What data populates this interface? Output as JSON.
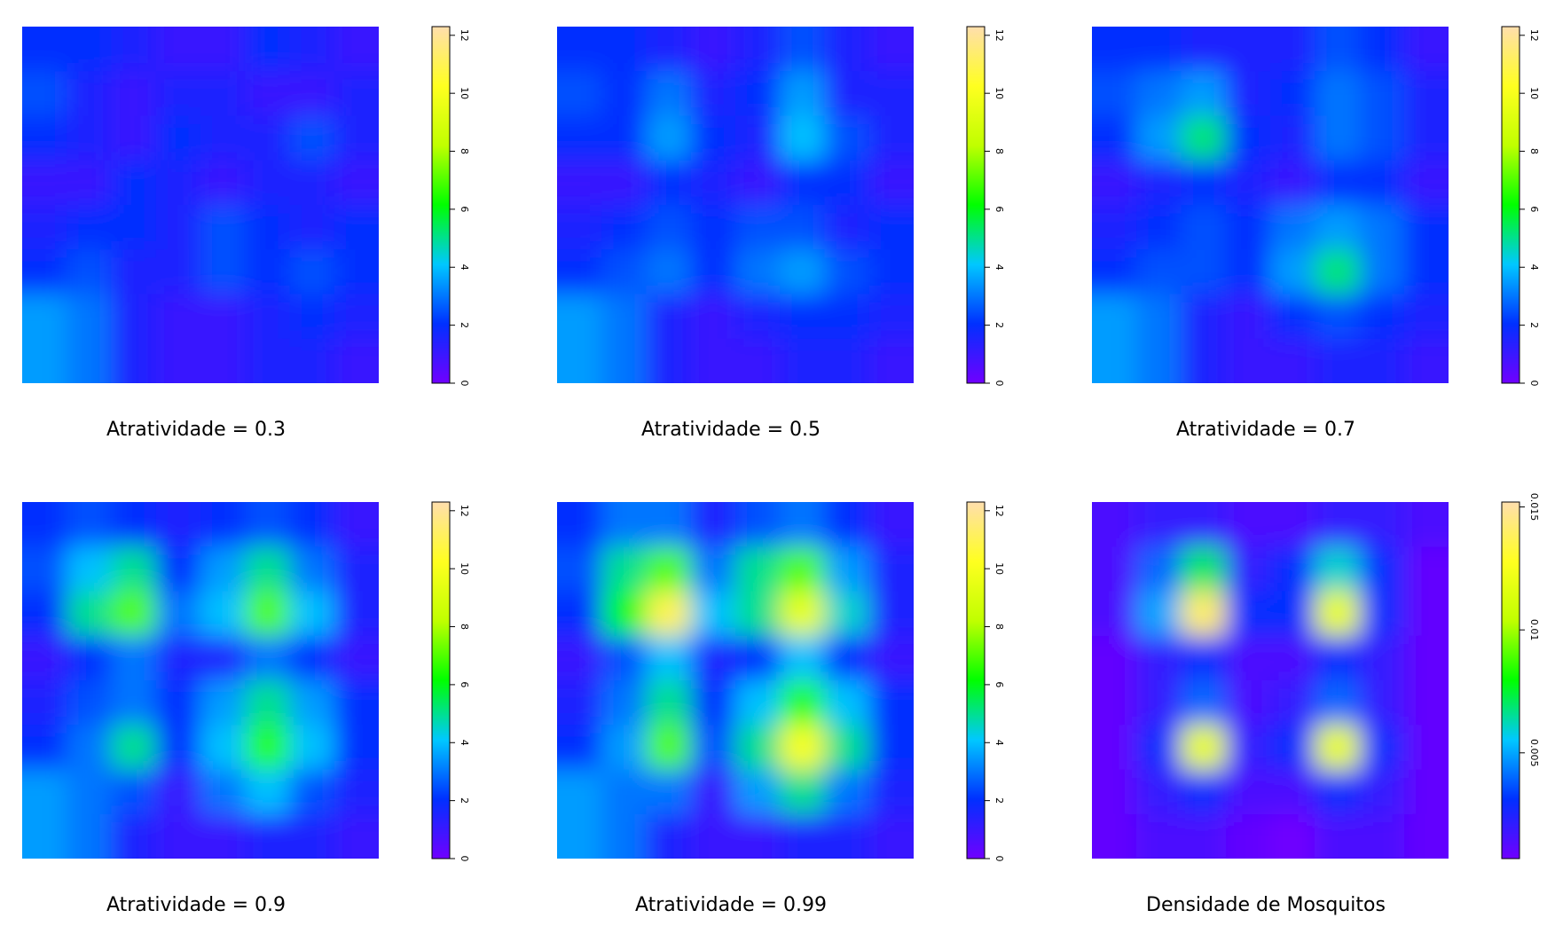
{
  "chart_data": [
    {
      "type": "heatmap",
      "title": "Atratividade = 0.3",
      "zlim": [
        0,
        12.3
      ],
      "zticks": [
        0,
        2,
        4,
        6,
        8,
        10,
        12
      ],
      "colorscale": [
        "#7000ff",
        "#0030ff",
        "#00c8ff",
        "#00ff00",
        "#c0ff00",
        "#ffff20",
        "#ffdead"
      ],
      "values": [
        [
          2,
          2,
          1.5,
          1,
          1,
          2,
          1.5,
          1
        ],
        [
          2.5,
          1.5,
          1,
          1.5,
          1.5,
          1,
          1,
          1.5
        ],
        [
          2,
          1.5,
          1,
          2,
          1.5,
          1.5,
          2.5,
          1.5
        ],
        [
          1,
          1,
          2,
          1.5,
          1,
          1.5,
          1.5,
          1
        ],
        [
          1.5,
          2,
          2,
          1.5,
          2.5,
          2,
          1.5,
          2
        ],
        [
          2,
          2.5,
          1.5,
          1.5,
          2.5,
          2,
          2.5,
          2
        ],
        [
          3.5,
          3,
          1.5,
          1,
          1,
          1.5,
          2,
          1.5
        ],
        [
          3.5,
          3,
          1.5,
          1,
          1,
          1.5,
          1.5,
          1
        ]
      ]
    },
    {
      "type": "heatmap",
      "title": "Atratividade = 0.5",
      "zlim": [
        0,
        12.3
      ],
      "zticks": [
        0,
        2,
        4,
        6,
        8,
        10,
        12
      ],
      "colorscale": [
        "#7000ff",
        "#0030ff",
        "#00c8ff",
        "#00ff00",
        "#c0ff00",
        "#ffff20",
        "#ffdead"
      ],
      "values": [
        [
          2,
          2,
          1.5,
          1,
          1.5,
          2.5,
          1.5,
          1
        ],
        [
          2.5,
          2,
          3,
          1.5,
          2,
          3.5,
          1.5,
          1.5
        ],
        [
          2,
          2,
          3.5,
          2,
          1.5,
          4,
          2.5,
          1.5
        ],
        [
          1,
          1,
          2,
          1.5,
          1,
          2,
          2,
          1
        ],
        [
          1.5,
          2,
          2.5,
          2,
          2.5,
          2.5,
          1.5,
          2
        ],
        [
          2,
          2.5,
          3,
          2,
          3,
          3.5,
          2.5,
          2
        ],
        [
          3.5,
          3,
          1.5,
          1,
          1.5,
          2,
          2,
          1.5
        ],
        [
          3.5,
          3,
          1.5,
          1,
          1,
          1.5,
          1.5,
          1
        ]
      ]
    },
    {
      "type": "heatmap",
      "title": "Atratividade = 0.7",
      "zlim": [
        0,
        12.3
      ],
      "zticks": [
        0,
        2,
        4,
        6,
        8,
        10,
        12
      ],
      "colorscale": [
        "#7000ff",
        "#0030ff",
        "#00c8ff",
        "#00ff00",
        "#c0ff00",
        "#ffff20",
        "#ffdead"
      ],
      "values": [
        [
          2,
          2,
          1.5,
          1.5,
          1.5,
          2.5,
          2,
          1
        ],
        [
          2.5,
          3,
          3.5,
          1.5,
          2,
          3,
          2.5,
          1.5
        ],
        [
          2,
          3.5,
          5.2,
          2,
          1.5,
          3,
          2.5,
          1.5
        ],
        [
          1,
          1.5,
          2,
          1.5,
          1,
          2,
          2,
          1
        ],
        [
          1.5,
          2,
          2.5,
          2,
          3,
          3.5,
          3,
          2
        ],
        [
          2,
          2.5,
          2.5,
          2,
          3.5,
          5.2,
          3,
          2
        ],
        [
          3.5,
          3,
          1.5,
          1,
          2,
          2.5,
          2,
          1.5
        ],
        [
          3.5,
          3,
          1.5,
          1,
          1,
          1.5,
          1.5,
          1
        ]
      ]
    },
    {
      "type": "heatmap",
      "title": "Atratividade = 0.9",
      "zlim": [
        0,
        12.3
      ],
      "zticks": [
        0,
        2,
        4,
        6,
        8,
        10,
        12
      ],
      "colorscale": [
        "#7000ff",
        "#0030ff",
        "#00c8ff",
        "#00ff00",
        "#c0ff00",
        "#ffff20",
        "#ffdead"
      ],
      "values": [
        [
          2,
          2.5,
          2,
          1.5,
          2,
          2.5,
          2,
          1
        ],
        [
          2.5,
          4,
          5,
          2,
          3.5,
          5,
          3,
          1.5
        ],
        [
          2,
          5,
          7,
          3,
          4,
          7,
          4,
          1.5
        ],
        [
          1,
          2,
          3,
          1.5,
          1.5,
          3,
          2,
          1
        ],
        [
          1.5,
          2.5,
          3,
          2,
          3.5,
          5,
          3.5,
          2
        ],
        [
          2,
          3,
          5,
          2,
          4,
          6.5,
          4,
          2
        ],
        [
          3.5,
          3,
          2.5,
          1,
          3,
          4,
          2.5,
          1.5
        ],
        [
          3.5,
          3,
          1.5,
          1,
          1,
          1.5,
          1.5,
          1
        ]
      ]
    },
    {
      "type": "heatmap",
      "title": "Atratividade = 0.99",
      "zlim": [
        0,
        12.3
      ],
      "zticks": [
        0,
        2,
        4,
        6,
        8,
        10,
        12
      ],
      "colorscale": [
        "#7000ff",
        "#0030ff",
        "#00c8ff",
        "#00ff00",
        "#c0ff00",
        "#ffff20",
        "#ffdead"
      ],
      "values": [
        [
          2,
          3,
          3,
          1.5,
          2.5,
          3,
          2,
          1
        ],
        [
          2.5,
          5,
          7,
          3,
          5,
          7,
          3.5,
          1.5
        ],
        [
          2,
          6,
          11,
          4,
          5,
          9.5,
          4.5,
          1.5
        ],
        [
          1,
          2.5,
          4,
          1.5,
          2,
          4,
          2,
          1
        ],
        [
          1.5,
          3,
          5,
          2,
          4,
          6.5,
          4,
          2
        ],
        [
          2,
          3.5,
          7,
          2.5,
          5,
          10,
          5,
          2
        ],
        [
          3.5,
          3,
          3,
          1,
          3.5,
          5,
          3,
          1.5
        ],
        [
          3.5,
          3,
          1.5,
          1,
          1,
          1.5,
          1.5,
          1
        ]
      ]
    },
    {
      "type": "heatmap",
      "title": "Densidade de Mosquitos",
      "zlim": [
        0.0007,
        0.0152
      ],
      "zticks": [
        0.005,
        0.01,
        0.015
      ],
      "colorscale": [
        "#7000ff",
        "#0030ff",
        "#00c8ff",
        "#00ff00",
        "#c0ff00",
        "#ffff20",
        "#ffdead"
      ],
      "values": [
        [
          0.0015,
          0.002,
          0.002,
          0.0015,
          0.0015,
          0.002,
          0.002,
          0.0015
        ],
        [
          0.0015,
          0.004,
          0.007,
          0.002,
          0.003,
          0.006,
          0.003,
          0.001
        ],
        [
          0.0015,
          0.005,
          0.014,
          0.003,
          0.003,
          0.012,
          0.003,
          0.001
        ],
        [
          0.001,
          0.002,
          0.003,
          0.0015,
          0.0015,
          0.003,
          0.002,
          0.001
        ],
        [
          0.001,
          0.002,
          0.004,
          0.0015,
          0.002,
          0.004,
          0.002,
          0.001
        ],
        [
          0.001,
          0.003,
          0.012,
          0.002,
          0.003,
          0.012,
          0.003,
          0.001
        ],
        [
          0.001,
          0.002,
          0.003,
          0.0015,
          0.0015,
          0.003,
          0.002,
          0.001
        ],
        [
          0.001,
          0.0015,
          0.0015,
          0.001,
          0.0005,
          0.0015,
          0.0015,
          0.001
        ]
      ]
    }
  ]
}
